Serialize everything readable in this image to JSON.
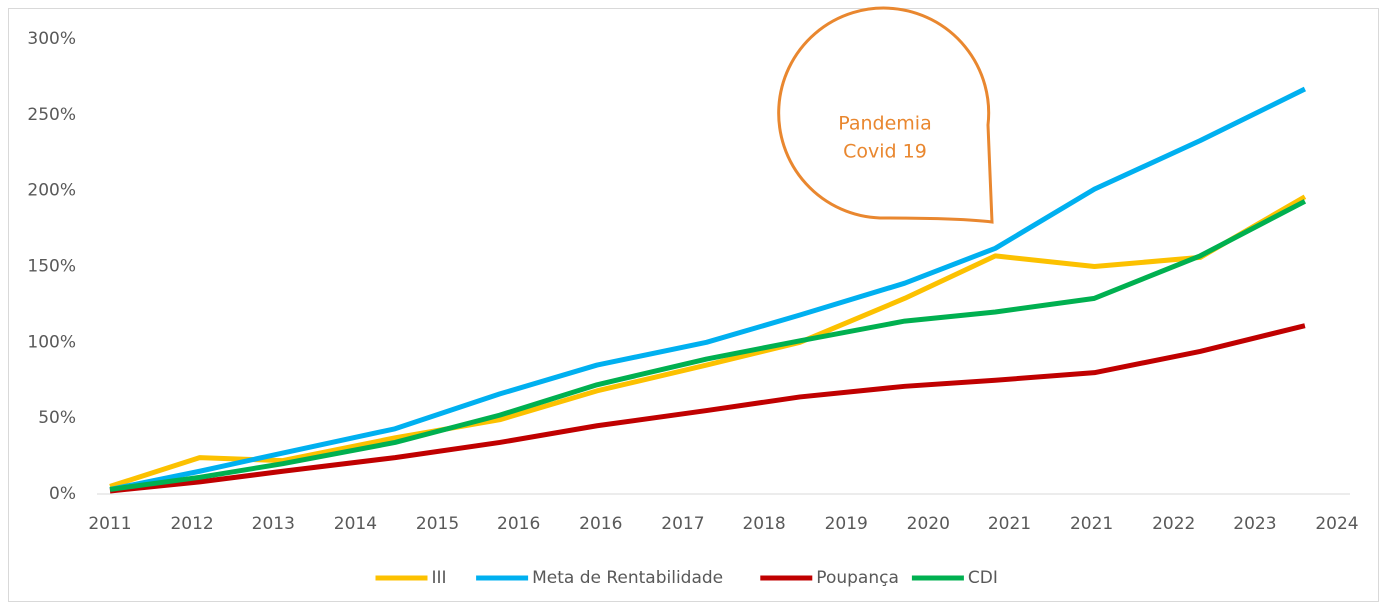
{
  "chart_data": {
    "type": "line",
    "xlim": [
      2011,
      2024
    ],
    "xticks": [
      {
        "value": 2011,
        "label": "2011"
      },
      {
        "value": 2011.87,
        "label": "2012"
      },
      {
        "value": 2012.73,
        "label": "2013"
      },
      {
        "value": 2013.6,
        "label": "2014"
      },
      {
        "value": 2014.47,
        "label": "2015"
      },
      {
        "value": 2015.33,
        "label": "2016"
      },
      {
        "value": 2016.2,
        "label": "2016"
      },
      {
        "value": 2017.07,
        "label": "2017"
      },
      {
        "value": 2017.93,
        "label": "2018"
      },
      {
        "value": 2018.8,
        "label": "2019"
      },
      {
        "value": 2019.67,
        "label": "2020"
      },
      {
        "value": 2020.53,
        "label": "2021"
      },
      {
        "value": 2021.4,
        "label": "2021"
      },
      {
        "value": 2022.27,
        "label": "2022"
      },
      {
        "value": 2023.13,
        "label": "2023"
      },
      {
        "value": 2024,
        "label": "2024"
      }
    ],
    "ylim": [
      0,
      300
    ],
    "yticks": [
      {
        "value": 0,
        "label": "0%"
      },
      {
        "value": 50,
        "label": "50%"
      },
      {
        "value": 100,
        "label": "100%"
      },
      {
        "value": 150,
        "label": "150%"
      },
      {
        "value": 200,
        "label": "200%"
      },
      {
        "value": 250,
        "label": "250%"
      },
      {
        "value": 300,
        "label": "300%"
      }
    ],
    "x": [
      2011,
      2011.95,
      2012.83,
      2014.02,
      2015.13,
      2016.16,
      2017.32,
      2018.31,
      2019.42,
      2020.38,
      2021.43,
      2022.55,
      2023.66
    ],
    "series": [
      {
        "name": "III",
        "color": "#fcc100",
        "values": [
          5,
          24,
          22,
          37,
          49,
          68,
          85,
          100,
          129,
          157,
          150,
          156,
          196
        ]
      },
      {
        "name": "Meta de Rentabilidade",
        "color": "#00b0f0",
        "values": [
          3,
          15,
          27,
          43,
          66,
          85,
          100,
          118,
          139,
          162,
          201,
          233,
          267
        ]
      },
      {
        "name": "Poupança",
        "color": "#c00000",
        "values": [
          2,
          8,
          15,
          24,
          34,
          45,
          55,
          64,
          71,
          75,
          80,
          94,
          111
        ]
      },
      {
        "name": "CDI",
        "color": "#00b050",
        "values": [
          3,
          11,
          20,
          34,
          52,
          72,
          89,
          101,
          114,
          120,
          129,
          157,
          193
        ]
      }
    ],
    "annotation": [
      "Pandemia",
      "Covid 19"
    ],
    "legend": "bottom"
  }
}
